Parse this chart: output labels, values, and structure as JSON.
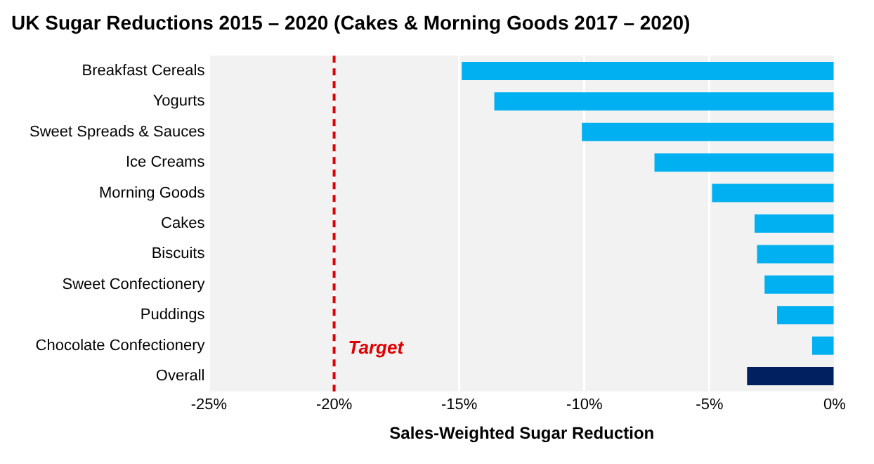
{
  "chart_data": {
    "type": "bar",
    "orientation": "horizontal",
    "title": "UK Sugar Reductions 2015 – 2020 (Cakes & Morning Goods 2017 – 2020)",
    "xlabel": "Sales-Weighted Sugar Reduction",
    "categories": [
      "Breakfast Cereals",
      "Yogurts",
      "Sweet Spreads & Sauces",
      "Ice Creams",
      "Morning Goods",
      "Cakes",
      "Biscuits",
      "Sweet Confectionery",
      "Puddings",
      "Chocolate Confectionery",
      "Overall"
    ],
    "values": [
      -14.9,
      -13.6,
      -10.1,
      -7.2,
      -4.9,
      -3.2,
      -3.1,
      -2.8,
      -2.3,
      -0.9,
      -3.5
    ],
    "colors": [
      "#00b0f0",
      "#00b0f0",
      "#00b0f0",
      "#00b0f0",
      "#00b0f0",
      "#00b0f0",
      "#00b0f0",
      "#00b0f0",
      "#00b0f0",
      "#00b0f0",
      "#002060"
    ],
    "xlim": [
      -25,
      0
    ],
    "xticks": [
      {
        "value": -25,
        "label": "-25%"
      },
      {
        "value": -20,
        "label": "-20%"
      },
      {
        "value": -15,
        "label": "-15%"
      },
      {
        "value": -10,
        "label": "-10%"
      },
      {
        "value": -5,
        "label": "-5%"
      },
      {
        "value": 0,
        "label": "0%"
      }
    ],
    "grid": "x",
    "ref_lines": [
      {
        "axis": "x",
        "value": -20,
        "label": "Target",
        "color": "#e00000",
        "line_style": "dashed"
      }
    ]
  }
}
